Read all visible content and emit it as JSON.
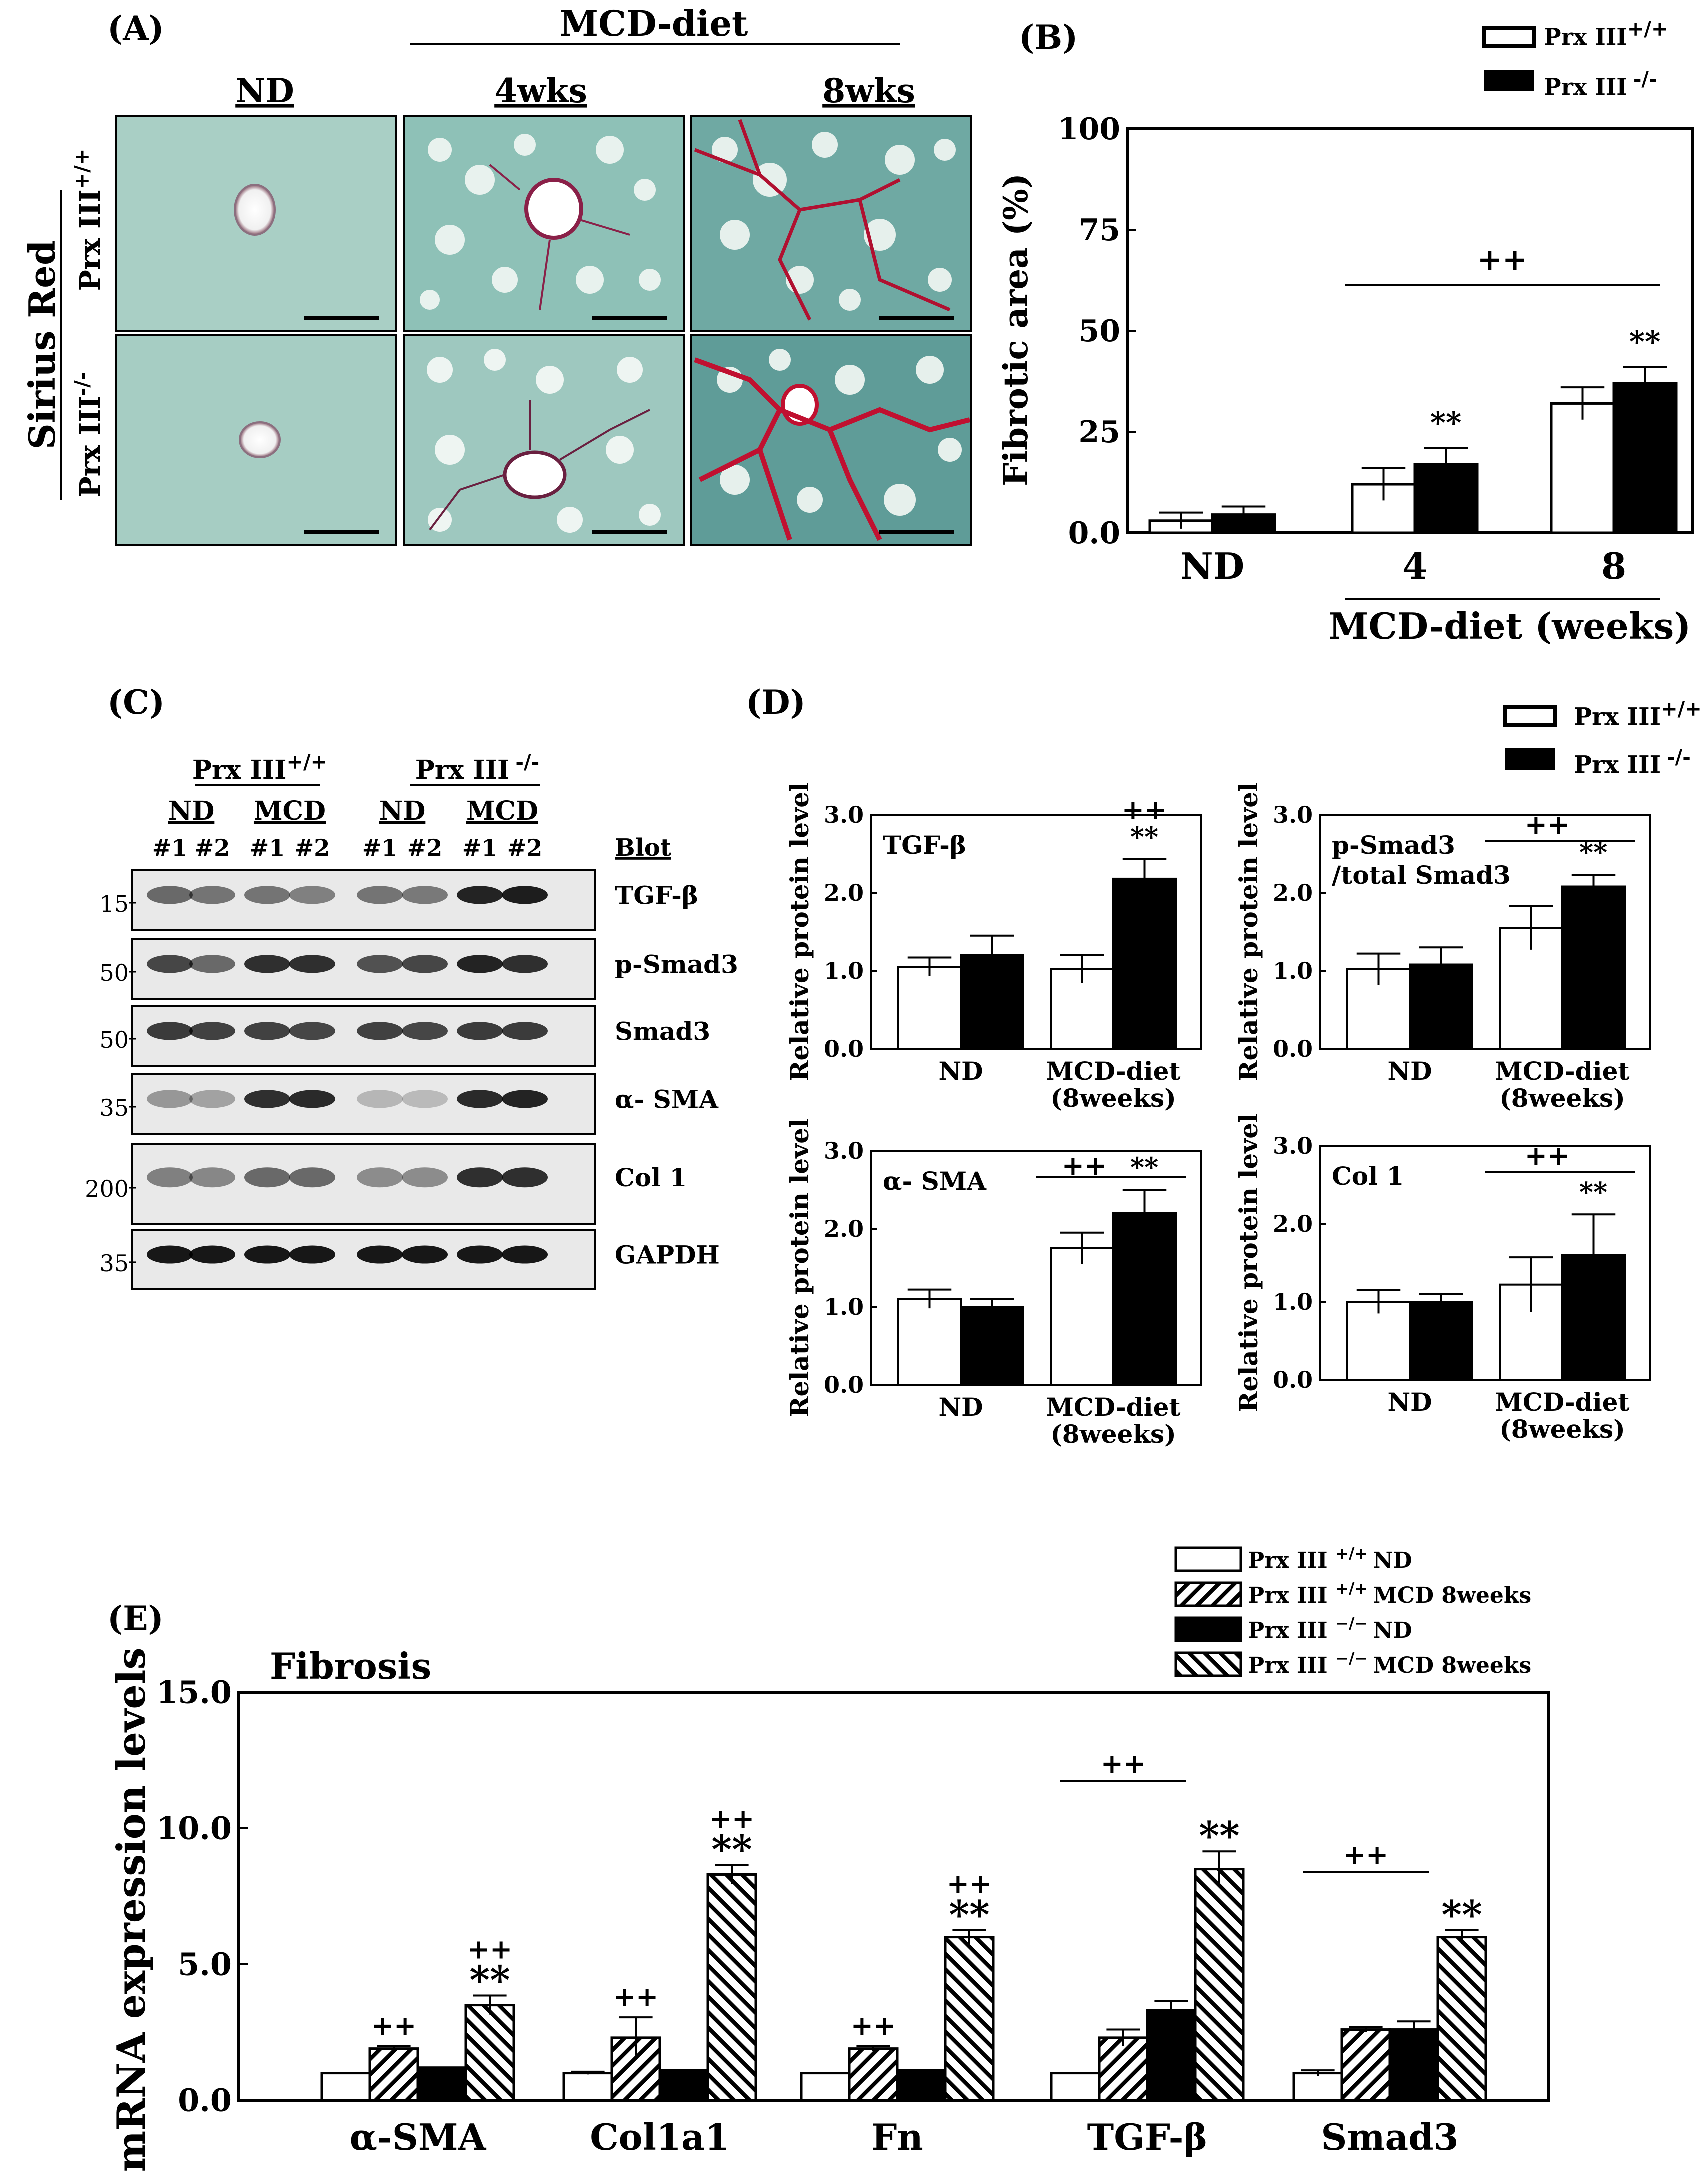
{
  "panel_labels": {
    "A": "(A)",
    "B": "(B)",
    "C": "(C)",
    "D": "(D)",
    "E": "(E)"
  },
  "genotypes": {
    "wt_base": "Prx III",
    "wt_sup": "+/+",
    "ko_base": "Prx III",
    "ko_sup": "-/-",
    "ko_sup_e": "−/−"
  },
  "panel_a": {
    "group_header": "MCD-diet",
    "columns": [
      "ND",
      "4wks",
      "8wks"
    ],
    "stain_label": "Sirius Red"
  },
  "panel_b": {
    "ylabel": "Fibrotic area (%)",
    "xlabel": "MCD-diet (weeks)",
    "sig_bracket": "++",
    "sig_marks": [
      "",
      "**",
      "**"
    ]
  },
  "panel_c": {
    "group_labels": [
      "ND",
      "MCD",
      "ND",
      "MCD"
    ],
    "lane_labels": [
      "#1",
      "#2",
      "#1",
      "#2",
      "#1",
      "#2",
      "#1",
      "#2"
    ],
    "blot_header": "Blot",
    "rows": [
      {
        "name": "TGF-β",
        "marker": "15"
      },
      {
        "name": "p-Smad3",
        "marker": "50"
      },
      {
        "name": "Smad3",
        "marker": "50"
      },
      {
        "name": "α- SMA",
        "marker": "35"
      },
      {
        "name": "Col 1",
        "marker": "200"
      },
      {
        "name": "GAPDH",
        "marker": "35"
      }
    ]
  },
  "panel_d": {
    "ylabel": "Relative protein level",
    "x_cat_1": "ND",
    "x_cat_2_line1": "MCD-diet",
    "x_cat_2_line2": "(8weeks)"
  },
  "panel_e": {
    "title": "Fibrosis",
    "ylabel": "mRNA expression levels",
    "legend": [
      {
        "tail": "ND",
        "pattern": "white"
      },
      {
        "tail": "MCD 8weeks",
        "pattern": "hatch-right"
      },
      {
        "tail": "ND",
        "pattern": "black"
      },
      {
        "tail": "MCD 8weeks",
        "pattern": "hatch-left"
      }
    ]
  },
  "chart_data": [
    {
      "id": "B",
      "type": "bar",
      "categories": [
        "ND",
        "4",
        "8"
      ],
      "series": [
        {
          "name": "Prx III+/+",
          "values": [
            3,
            12,
            32
          ],
          "errors": [
            2,
            4,
            4
          ]
        },
        {
          "name": "Prx III -/-",
          "values": [
            4.5,
            17,
            37
          ],
          "errors": [
            2,
            4,
            4
          ]
        }
      ],
      "ylabel": "Fibrotic area (%)",
      "xlabel": "MCD-diet (weeks)",
      "ylim": [
        0,
        100
      ],
      "yticks": [
        "0.0",
        "25",
        "50",
        "75",
        "100"
      ],
      "legend_position": "top-right"
    },
    {
      "id": "D1",
      "type": "bar",
      "inset_label": "TGF-β",
      "categories": [
        "ND",
        "MCD-diet (8weeks)"
      ],
      "series": [
        {
          "name": "Prx III+/+",
          "values": [
            1.05,
            1.02
          ],
          "errors": [
            0.12,
            0.18
          ]
        },
        {
          "name": "Prx III -/-",
          "values": [
            1.2,
            2.18
          ],
          "errors": [
            0.25,
            0.25
          ]
        }
      ],
      "ylabel": "Relative protein level",
      "ylim": [
        0,
        3
      ],
      "yticks": [
        "0.0",
        "1.0",
        "2.0",
        "3.0"
      ],
      "sig_marks": [
        "",
        "**"
      ],
      "sig_plus": [
        "",
        "++"
      ],
      "bracket": ""
    },
    {
      "id": "D2",
      "type": "bar",
      "inset_label": "p-Smad3",
      "inset_label_2": "/total Smad3",
      "categories": [
        "ND",
        "MCD-diet (8weeks)"
      ],
      "series": [
        {
          "name": "Prx III+/+",
          "values": [
            1.02,
            1.55
          ],
          "errors": [
            0.2,
            0.28
          ]
        },
        {
          "name": "Prx III -/-",
          "values": [
            1.08,
            2.08
          ],
          "errors": [
            0.22,
            0.15
          ]
        }
      ],
      "ylabel": "Relative protein level",
      "ylim": [
        0,
        3
      ],
      "yticks": [
        "0.0",
        "1.0",
        "2.0",
        "3.0"
      ],
      "sig_marks": [
        "",
        "**"
      ],
      "sig_plus": [
        "",
        ""
      ],
      "bracket": "++"
    },
    {
      "id": "D3",
      "type": "bar",
      "inset_label": "α- SMA",
      "categories": [
        "ND",
        "MCD-diet (8weeks)"
      ],
      "series": [
        {
          "name": "Prx III+/+",
          "values": [
            1.1,
            1.75
          ],
          "errors": [
            0.12,
            0.2
          ]
        },
        {
          "name": "Prx III -/-",
          "values": [
            1.0,
            2.2
          ],
          "errors": [
            0.1,
            0.3
          ]
        }
      ],
      "ylabel": "Relative protein level",
      "ylim": [
        0,
        3
      ],
      "yticks": [
        "0.0",
        "1.0",
        "2.0",
        "3.0"
      ],
      "sig_marks": [
        "",
        "**"
      ],
      "sig_plus": [
        "",
        "++"
      ],
      "bracket": " "
    },
    {
      "id": "D4",
      "type": "bar",
      "inset_label": "Col 1",
      "categories": [
        "ND",
        "MCD-diet (8weeks)"
      ],
      "series": [
        {
          "name": "Prx III+/+",
          "values": [
            1.0,
            1.22
          ],
          "errors": [
            0.15,
            0.35
          ]
        },
        {
          "name": "Prx III -/-",
          "values": [
            1.0,
            1.6
          ],
          "errors": [
            0.1,
            0.52
          ]
        }
      ],
      "ylabel": "Relative protein level",
      "ylim": [
        0,
        3
      ],
      "yticks": [
        "0.0",
        "1.0",
        "2.0",
        "3.0"
      ],
      "sig_marks": [
        "",
        "**"
      ],
      "sig_plus": [
        "",
        ""
      ],
      "bracket": "++"
    },
    {
      "id": "E",
      "type": "bar",
      "categories": [
        "α-SMA",
        "Col1a1",
        "Fn",
        "TGF-β",
        "Smad3"
      ],
      "series": [
        {
          "name": "Prx III +/+ ND",
          "values": [
            1,
            1,
            1,
            1,
            1
          ],
          "errors": [
            0,
            0.05,
            0,
            0,
            0.1
          ]
        },
        {
          "name": "Prx III +/+ MCD 8weeks",
          "values": [
            1.9,
            2.3,
            1.9,
            2.3,
            2.6
          ],
          "errors": [
            0.1,
            0.75,
            0.1,
            0.3,
            0.1
          ]
        },
        {
          "name": "Prx III −/− ND",
          "values": [
            1.2,
            1.1,
            1.1,
            3.3,
            2.6
          ],
          "errors": [
            0,
            0,
            0,
            0.35,
            0.3
          ]
        },
        {
          "name": "Prx III −/− MCD 8weeks",
          "values": [
            3.5,
            8.3,
            6,
            8.5,
            6
          ],
          "errors": [
            0.35,
            0.35,
            0.25,
            0.65,
            0.25
          ]
        }
      ],
      "ylabel": "mRNA expression levels",
      "ylim": [
        0,
        15
      ],
      "yticks": [
        "0.0",
        "5.0",
        "10.0",
        "15.0"
      ],
      "sig_plus_mcd_wt": [
        "++",
        "++",
        "++",
        "",
        ""
      ],
      "sig_plus_mcd_ko": [
        "++",
        "++",
        "++",
        "",
        ""
      ],
      "sig_star_mcd_ko": [
        "**",
        "**",
        "**",
        "**",
        "**"
      ],
      "brackets": [
        "",
        "",
        "",
        "++",
        "++"
      ]
    }
  ]
}
